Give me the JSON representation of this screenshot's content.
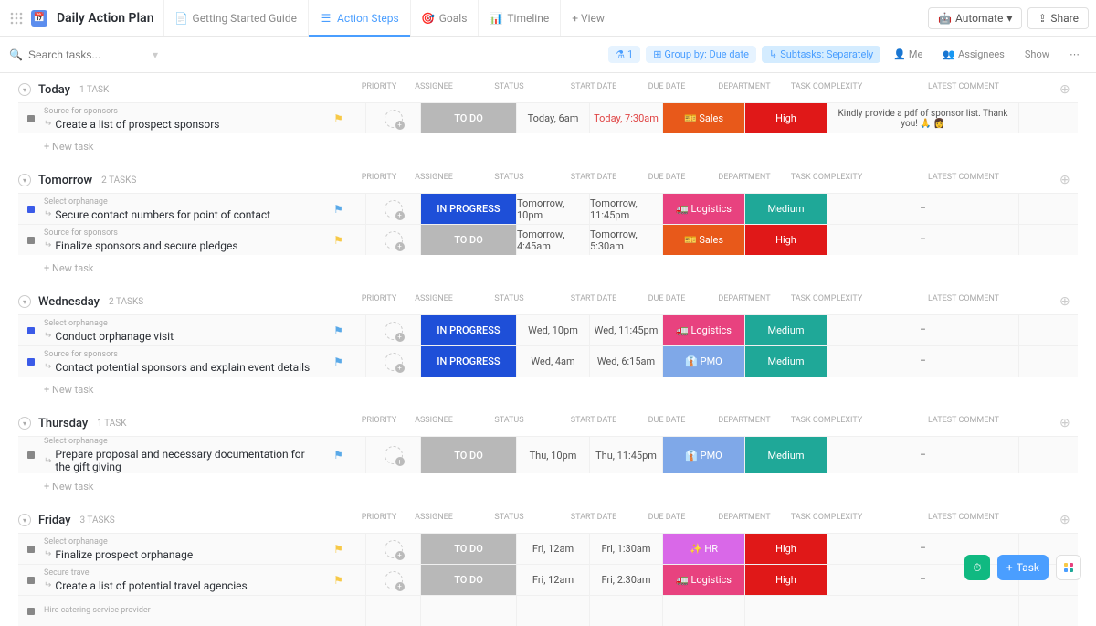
{
  "header": {
    "title": "Daily Action Plan",
    "tabs": [
      {
        "label": "Getting Started Guide"
      },
      {
        "label": "Action Steps"
      },
      {
        "label": "Goals"
      },
      {
        "label": "Timeline"
      }
    ],
    "add_view": "+ View",
    "automate": "Automate",
    "share": "Share"
  },
  "toolbar": {
    "search_placeholder": "Search tasks...",
    "filter_count": "1",
    "group_label": "Group by: Due date",
    "subtasks_label": "Subtasks: Separately",
    "me_label": "Me",
    "assignees_label": "Assignees",
    "show_label": "Show"
  },
  "columns": {
    "priority": "PRIORITY",
    "assignee": "ASSIGNEE",
    "status": "STATUS",
    "start_date": "START DATE",
    "due_date": "DUE DATE",
    "department": "DEPARTMENT",
    "complexity": "TASK COMPLEXITY",
    "comment": "LATEST COMMENT"
  },
  "status_colors": {
    "todo": "#b8b8b8",
    "in_progress": "#1e4fd8"
  },
  "dept_colors": {
    "Sales": "#e8591a",
    "Logistics": "#e8427f",
    "PMO": "#7fa8e8",
    "HR": "#d968e8"
  },
  "complexity_colors": {
    "High": "#e01818",
    "Medium": "#1fa898"
  },
  "groups": [
    {
      "name": "Today",
      "count": "1 TASK",
      "tasks": [
        {
          "source": "Source for sponsors",
          "name": "Create a list of prospect sponsors",
          "priority": "yellow",
          "status": "TO DO",
          "status_key": "todo",
          "start": "Today, 6am",
          "due": "Today, 7:30am",
          "due_over": true,
          "dept": "Sales",
          "dept_icon": "🎫",
          "complex": "High",
          "comment": "Kindly provide a pdf of sponsor list. Thank you! 🙏 👩",
          "sq": "gray"
        }
      ],
      "new_task": true
    },
    {
      "name": "Tomorrow",
      "count": "2 TASKS",
      "tasks": [
        {
          "source": "Select orphanage",
          "name": "Secure contact numbers for point of contact",
          "priority": "blue",
          "status": "IN PROGRESS",
          "status_key": "in_progress",
          "start": "Tomorrow, 10pm",
          "due": "Tomorrow, 11:45pm",
          "dept": "Logistics",
          "dept_icon": "🚛",
          "complex": "Medium",
          "comment": "–",
          "sq": "blue"
        },
        {
          "source": "Source for sponsors",
          "name": "Finalize sponsors and secure pledges",
          "priority": "yellow",
          "status": "TO DO",
          "status_key": "todo",
          "start": "Tomorrow, 4:45am",
          "due": "Tomorrow, 5:30am",
          "dept": "Sales",
          "dept_icon": "🎫",
          "complex": "High",
          "comment": "–",
          "sq": "gray"
        }
      ],
      "new_task": true
    },
    {
      "name": "Wednesday",
      "count": "2 TASKS",
      "tasks": [
        {
          "source": "Select orphanage",
          "name": "Conduct orphanage visit",
          "priority": "blue",
          "status": "IN PROGRESS",
          "status_key": "in_progress",
          "start": "Wed, 10pm",
          "due": "Wed, 11:45pm",
          "dept": "Logistics",
          "dept_icon": "🚛",
          "complex": "Medium",
          "comment": "–",
          "sq": "blue"
        },
        {
          "source": "Source for sponsors",
          "name": "Contact potential sponsors and explain event details",
          "priority": "blue",
          "status": "IN PROGRESS",
          "status_key": "in_progress",
          "start": "Wed, 4am",
          "due": "Wed, 6:15am",
          "dept": "PMO",
          "dept_icon": "👔",
          "complex": "Medium",
          "comment": "–",
          "sq": "blue"
        }
      ],
      "new_task": true
    },
    {
      "name": "Thursday",
      "count": "1 TASK",
      "tasks": [
        {
          "source": "Select orphanage",
          "name": "Prepare proposal and necessary documentation for the gift giving",
          "priority": "blue",
          "status": "TO DO",
          "status_key": "todo",
          "start": "Thu, 10pm",
          "due": "Thu, 11:45pm",
          "dept": "PMO",
          "dept_icon": "👔",
          "complex": "Medium",
          "comment": "–",
          "sq": "gray"
        }
      ],
      "new_task": true
    },
    {
      "name": "Friday",
      "count": "3 TASKS",
      "tasks": [
        {
          "source": "Select orphanage",
          "name": "Finalize prospect orphanage",
          "priority": "yellow",
          "status": "TO DO",
          "status_key": "todo",
          "start": "Fri, 12am",
          "due": "Fri, 1:30am",
          "dept": "HR",
          "dept_icon": "✨",
          "complex": "High",
          "comment": "–",
          "sq": "gray"
        },
        {
          "source": "Secure travel",
          "name": "Create a list of potential travel agencies",
          "priority": "yellow",
          "status": "TO DO",
          "status_key": "todo",
          "start": "Fri, 12am",
          "due": "Fri, 2:30am",
          "dept": "Logistics",
          "dept_icon": "🚛",
          "complex": "High",
          "comment": "–",
          "sq": "gray"
        },
        {
          "source": "Hire catering service provider",
          "name": "",
          "priority": "",
          "status": "",
          "status_key": "",
          "start": "",
          "due": "",
          "dept": "",
          "complex": "",
          "comment": "",
          "sq": "gray",
          "partial": true
        }
      ],
      "new_task": false
    }
  ],
  "new_task_label": "+ New task",
  "fab": {
    "task": "Task"
  }
}
